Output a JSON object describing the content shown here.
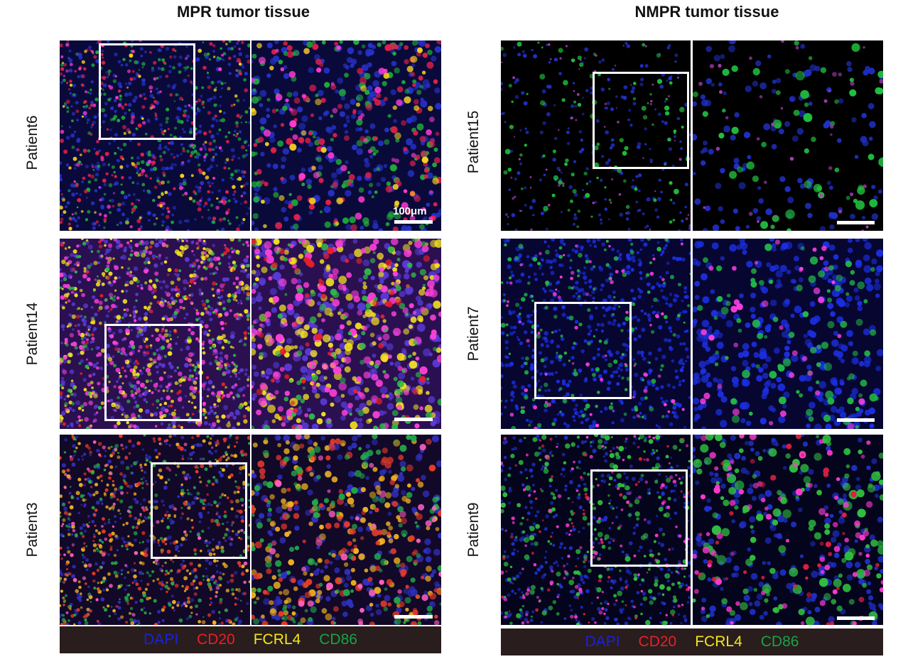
{
  "figure": {
    "left_title": "MPR tumor tissue",
    "right_title": "NMPR tumor tissue",
    "scale_label": "100μm",
    "left_rows": [
      {
        "label": "Patient6",
        "theme": "redyellow"
      },
      {
        "label": "Patient14",
        "theme": "yellowmagenta"
      },
      {
        "label": "Patient3",
        "theme": "orange"
      }
    ],
    "right_rows": [
      {
        "label": "Patient15",
        "theme": "sparse"
      },
      {
        "label": "Patient7",
        "theme": "magentacore"
      },
      {
        "label": "Patient9",
        "theme": "greenmagenta"
      }
    ],
    "legend": [
      {
        "label": "DAPI",
        "color": "#1a22d8"
      },
      {
        "label": "CD20",
        "color": "#e8202a"
      },
      {
        "label": "FCRL4",
        "color": "#f2e71a"
      },
      {
        "label": "CD86",
        "color": "#17a347"
      }
    ]
  }
}
